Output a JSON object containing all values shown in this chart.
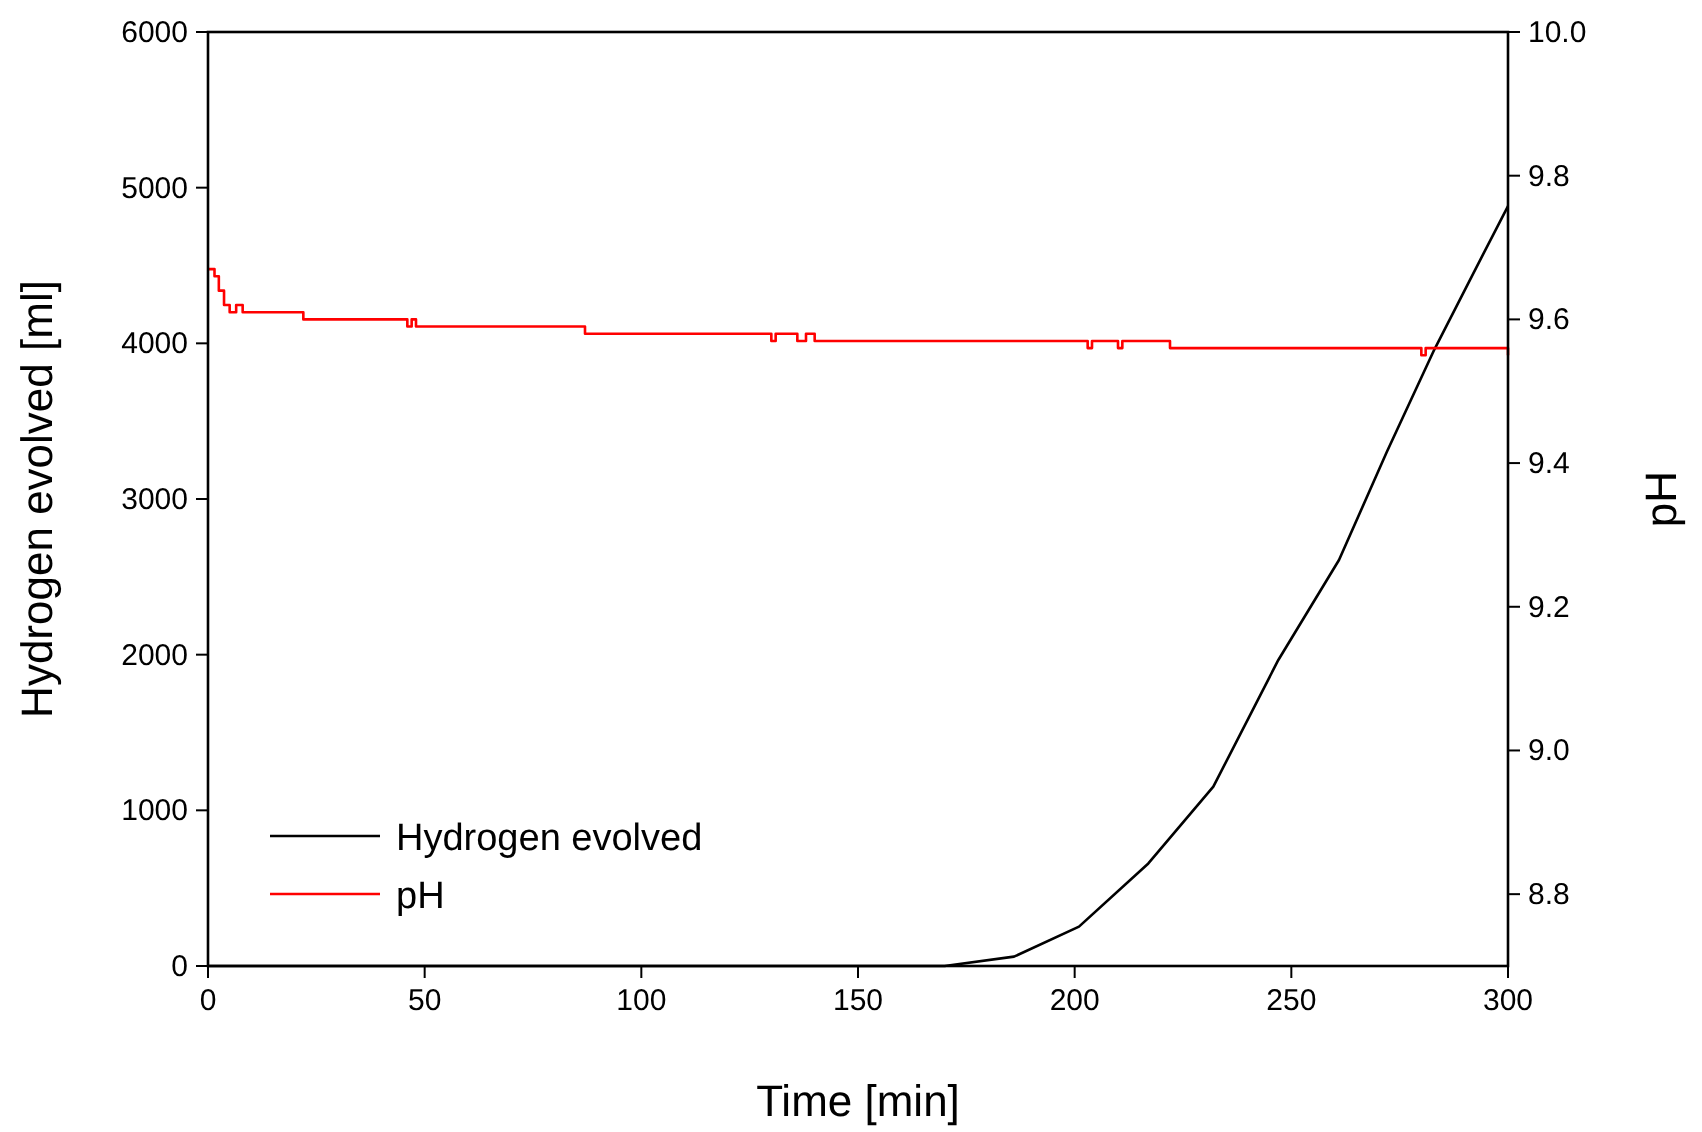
{
  "chart_data": {
    "type": "line",
    "xlabel": "Time [min]",
    "ylabel": "Hydrogen evolved [ml]",
    "y2label": "pH",
    "xlim": [
      0,
      300
    ],
    "xticks": [
      0,
      50,
      100,
      150,
      200,
      250,
      300
    ],
    "ylim": [
      0,
      6000
    ],
    "yticks": [
      0,
      1000,
      2000,
      3000,
      4000,
      5000,
      6000
    ],
    "y2lim": [
      8.7,
      10
    ],
    "y2ticks": [
      {
        "value": 8.8,
        "label": "8.8"
      },
      {
        "value": 9.0,
        "label": "9.0"
      },
      {
        "value": 9.2,
        "label": "9.2"
      },
      {
        "value": 9.4,
        "label": "9.4"
      },
      {
        "value": 9.6,
        "label": "9.6"
      },
      {
        "value": 9.8,
        "label": "9.8"
      },
      {
        "value": 10.0,
        "label": "10.0"
      }
    ],
    "legend": "bottom left",
    "grid": false,
    "marker": "none",
    "line_style": "solid",
    "series": [
      {
        "name": "Hydrogen evolved",
        "color": "#000000",
        "x": [
          0,
          170,
          186,
          201,
          217,
          232,
          247,
          261,
          272,
          283,
          292,
          300
        ],
        "values": [
          0,
          0,
          60,
          253,
          659,
          1152,
          1966,
          2608,
          3300,
          3960,
          4450,
          4882
        ]
      },
      {
        "name": "pH",
        "type": "step",
        "axis": "y2",
        "color": "#ff0000",
        "x": [
          0,
          1.5,
          2.5,
          3.7,
          5,
          6.5,
          8,
          22,
          46,
          47,
          48,
          87,
          130,
          131,
          136,
          138,
          140,
          203,
          204,
          210,
          211,
          222,
          223,
          280,
          281,
          300
        ],
        "values": [
          9.67,
          9.66,
          9.64,
          9.62,
          9.61,
          9.62,
          9.61,
          9.6,
          9.59,
          9.6,
          9.59,
          9.58,
          9.57,
          9.58,
          9.57,
          9.58,
          9.57,
          9.56,
          9.57,
          9.56,
          9.57,
          9.56,
          9.56,
          9.55,
          9.56,
          9.55
        ]
      }
    ]
  }
}
